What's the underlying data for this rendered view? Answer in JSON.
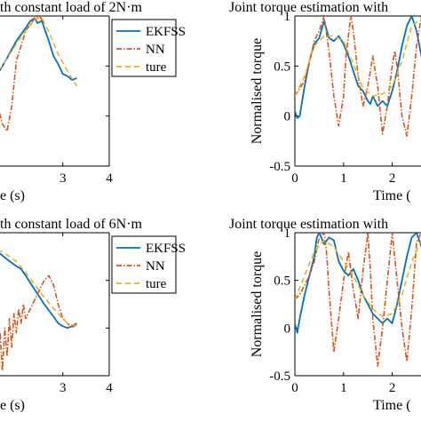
{
  "colors": {
    "ekfss": "#0072BD",
    "nn": "#D95319",
    "ture": "#EDB120",
    "axis": "#000000"
  },
  "chart_data": [
    {
      "type": "line",
      "title": "th constant load of 2N·m",
      "xlabel": "e (s)",
      "ylabel": "",
      "xticks": [
        "3",
        "4"
      ],
      "yticks": [],
      "xlim": [
        0.5,
        4
      ],
      "ylim": [
        -0.5,
        1
      ],
      "grid": false,
      "legend_placement": "top-right",
      "series": [
        {
          "name": "EKFSS",
          "x": [
            0.5,
            0.8,
            1.0,
            1.2,
            1.4,
            1.6,
            1.8,
            2.0,
            2.2,
            2.3,
            2.4,
            2.45,
            2.55,
            2.6,
            2.7,
            2.8,
            2.9,
            3.0,
            3.1,
            3.2,
            3.3
          ],
          "y": [
            0.82,
            0.6,
            0.42,
            0.25,
            0.3,
            0.42,
            0.58,
            0.75,
            0.88,
            0.95,
            0.98,
            0.93,
            0.95,
            0.88,
            0.75,
            0.6,
            0.52,
            0.42,
            0.4,
            0.36,
            0.38
          ]
        },
        {
          "name": "NN",
          "x": [
            0.5,
            0.9,
            1.2,
            1.4,
            1.6,
            1.7,
            1.8,
            1.9,
            2.0,
            2.2,
            2.4,
            2.5,
            2.6
          ],
          "y": [
            0.85,
            0.55,
            0.5,
            0.38,
            0.1,
            -0.08,
            -0.15,
            0.1,
            0.55,
            0.85,
            0.98,
            1.0,
            0.92
          ]
        },
        {
          "name": "ture",
          "x": [
            0.5,
            0.8,
            1.1,
            1.4,
            1.7,
            2.0,
            2.2,
            2.4,
            2.55,
            2.7,
            2.9,
            3.1,
            3.3
          ],
          "y": [
            0.84,
            0.62,
            0.45,
            0.35,
            0.5,
            0.72,
            0.85,
            0.97,
            0.98,
            0.84,
            0.62,
            0.45,
            0.3
          ]
        }
      ]
    },
    {
      "type": "line",
      "title": "Joint torque estimation with",
      "xlabel": "Time (",
      "ylabel": "Normalised torque",
      "xticks": [
        "0",
        "1",
        "2"
      ],
      "yticks": [
        "1",
        "0.5",
        "0",
        "-0.5"
      ],
      "xlim": [
        0,
        2.7
      ],
      "ylim": [
        -0.5,
        1
      ],
      "grid": false,
      "legend_placement": "none",
      "series": [
        {
          "name": "EKFSS",
          "x": [
            0,
            0.05,
            0.1,
            0.15,
            0.2,
            0.3,
            0.4,
            0.5,
            0.6,
            0.7,
            0.8,
            0.9,
            1.0,
            1.1,
            1.2,
            1.3,
            1.4,
            1.5,
            1.55,
            1.6,
            1.7,
            1.8,
            1.9,
            2.0,
            2.1,
            2.2,
            2.3,
            2.4,
            2.5,
            2.6,
            2.7
          ],
          "y": [
            0.05,
            -0.02,
            0.0,
            0.15,
            0.3,
            0.55,
            0.72,
            0.78,
            0.95,
            0.78,
            0.75,
            0.8,
            0.72,
            0.6,
            0.45,
            0.3,
            0.25,
            0.15,
            0.12,
            0.2,
            0.1,
            0.15,
            0.1,
            0.25,
            0.45,
            0.7,
            0.9,
            1.0,
            0.85,
            0.6,
            0.9
          ]
        },
        {
          "name": "NN",
          "x": [
            0,
            0.2,
            0.4,
            0.5,
            0.6,
            0.7,
            0.8,
            0.9,
            1.0,
            1.05,
            1.15,
            1.2,
            1.3,
            1.4,
            1.5,
            1.6,
            1.7,
            1.8,
            1.9,
            2.0,
            2.05,
            2.1,
            2.2,
            2.3,
            2.4,
            2.5,
            2.6,
            2.7
          ],
          "y": [
            0.2,
            0.35,
            0.75,
            0.85,
            1.0,
            0.65,
            0.2,
            -0.1,
            0.2,
            0.6,
            1.0,
            0.85,
            0.4,
            0.1,
            0.3,
            0.6,
            0.3,
            -0.18,
            0.1,
            0.5,
            0.65,
            0.5,
            0.0,
            -0.2,
            0.2,
            0.7,
            1.0,
            0.6
          ]
        },
        {
          "name": "ture",
          "x": [
            0,
            0.2,
            0.4,
            0.6,
            0.8,
            1.0,
            1.2,
            1.4,
            1.6,
            1.8,
            2.0,
            2.2,
            2.4,
            2.6,
            2.7
          ],
          "y": [
            0.2,
            0.4,
            0.7,
            0.8,
            0.8,
            0.75,
            0.52,
            0.28,
            0.2,
            0.22,
            0.3,
            0.55,
            0.9,
            0.98,
            0.85
          ]
        }
      ]
    },
    {
      "type": "line",
      "title": "th constant load of 6N·m",
      "xlabel": "e (s)",
      "ylabel": "",
      "xticks": [
        "3",
        "4"
      ],
      "yticks": [],
      "xlim": [
        0.5,
        4
      ],
      "ylim": [
        -0.5,
        1
      ],
      "grid": false,
      "legend_placement": "top-right",
      "series": [
        {
          "name": "EKFSS",
          "x": [
            0.5,
            0.8,
            1.0,
            1.2,
            1.4,
            1.5,
            1.6,
            1.8,
            2.0,
            2.1,
            2.2,
            2.4,
            2.6,
            2.8,
            2.9,
            3.0,
            3.1,
            3.2,
            3.3
          ],
          "y": [
            0.95,
            0.85,
            0.88,
            0.9,
            0.98,
            0.85,
            0.8,
            0.72,
            0.65,
            0.62,
            0.55,
            0.4,
            0.25,
            0.12,
            0.05,
            0.02,
            0.0,
            0.02,
            0.05
          ]
        },
        {
          "name": "NN",
          "x": [
            0.5,
            0.8,
            1.0,
            1.2,
            1.35,
            1.4,
            1.45,
            1.5,
            1.55,
            1.6,
            1.65,
            1.7,
            1.75,
            1.8,
            1.85,
            1.9,
            1.95,
            2.0,
            2.05,
            2.1,
            2.15,
            2.2,
            2.4,
            2.6,
            2.7,
            2.8,
            2.9,
            3.0,
            3.1,
            3.2,
            3.3
          ],
          "y": [
            0.9,
            0.75,
            0.5,
            0.2,
            0.0,
            -0.25,
            -0.1,
            -0.3,
            0.05,
            -0.35,
            -0.05,
            -0.45,
            0.0,
            -0.3,
            0.1,
            -0.2,
            0.15,
            -0.05,
            0.2,
            0.05,
            0.25,
            0.1,
            0.3,
            0.5,
            0.55,
            0.45,
            0.25,
            0.1,
            0.05,
            0.0,
            0.05
          ]
        },
        {
          "name": "ture",
          "x": [
            0.5,
            0.8,
            1.1,
            1.4,
            1.7,
            2.0,
            2.3,
            2.6,
            2.9,
            3.1,
            3.3
          ],
          "y": [
            0.98,
            0.92,
            0.88,
            0.85,
            0.8,
            0.7,
            0.52,
            0.32,
            0.15,
            0.05,
            0.02
          ]
        }
      ]
    },
    {
      "type": "line",
      "title": "Joint torque estimation with",
      "xlabel": "Time (",
      "ylabel": "Normalised torque",
      "xticks": [
        "0",
        "1",
        "2"
      ],
      "yticks": [
        "1",
        "0.5",
        "0",
        "-0.5"
      ],
      "xlim": [
        0,
        2.7
      ],
      "ylim": [
        -0.5,
        1
      ],
      "grid": false,
      "legend_placement": "none",
      "series": [
        {
          "name": "EKFSS",
          "x": [
            0,
            0.05,
            0.1,
            0.2,
            0.3,
            0.4,
            0.45,
            0.5,
            0.6,
            0.7,
            0.8,
            0.9,
            1.0,
            1.1,
            1.2,
            1.3,
            1.4,
            1.5,
            1.6,
            1.7,
            1.8,
            1.9,
            2.0,
            2.1,
            2.2,
            2.3,
            2.4,
            2.5,
            2.6,
            2.7
          ],
          "y": [
            0.05,
            -0.05,
            0.1,
            0.35,
            0.55,
            0.75,
            0.95,
            1.0,
            0.88,
            0.95,
            0.92,
            0.7,
            0.6,
            0.55,
            0.62,
            0.5,
            0.35,
            0.25,
            0.15,
            0.1,
            0.05,
            0.1,
            0.05,
            0.25,
            0.5,
            0.75,
            0.95,
            1.0,
            0.85,
            0.95
          ]
        },
        {
          "name": "NN",
          "x": [
            0,
            0.1,
            0.2,
            0.3,
            0.4,
            0.5,
            0.6,
            0.65,
            0.7,
            0.8,
            0.9,
            1.0,
            1.1,
            1.2,
            1.3,
            1.4,
            1.5,
            1.55,
            1.6,
            1.7,
            1.8,
            1.9,
            2.0,
            2.1,
            2.2,
            2.3,
            2.4,
            2.5,
            2.6,
            2.7
          ],
          "y": [
            0.3,
            0.35,
            0.45,
            0.55,
            0.7,
            0.95,
            1.0,
            0.8,
            0.4,
            -0.25,
            0.1,
            0.5,
            0.8,
            0.4,
            0.1,
            0.6,
            1.0,
            0.6,
            0.1,
            -0.4,
            0.0,
            0.5,
            1.0,
            0.5,
            0.0,
            -0.35,
            0.2,
            0.9,
            1.0,
            0.7
          ]
        },
        {
          "name": "ture",
          "x": [
            0,
            0.2,
            0.4,
            0.6,
            0.8,
            1.0,
            1.2,
            1.4,
            1.6,
            1.8,
            2.0,
            2.2,
            2.4,
            2.6,
            2.7
          ],
          "y": [
            0.3,
            0.55,
            0.8,
            0.92,
            0.85,
            0.7,
            0.55,
            0.35,
            0.2,
            0.12,
            0.15,
            0.35,
            0.7,
            0.92,
            0.85
          ]
        }
      ]
    }
  ]
}
